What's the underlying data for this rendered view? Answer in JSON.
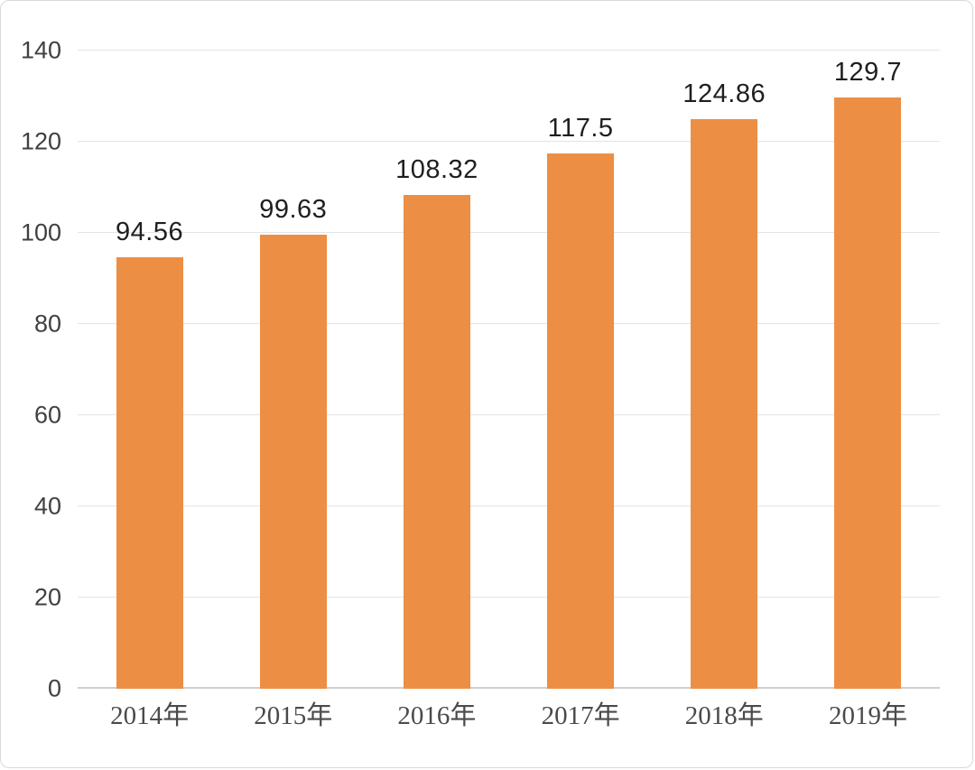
{
  "figure": {
    "background": "#ffffff",
    "border_color": "#d9d9d9"
  },
  "chart_data": {
    "type": "bar",
    "title": "",
    "xlabel": "",
    "ylabel": "",
    "categories": [
      "2014年",
      "2015年",
      "2016年",
      "2017年",
      "2018年",
      "2019年"
    ],
    "values": [
      94.56,
      99.63,
      108.32,
      117.5,
      124.86,
      129.7
    ],
    "value_labels": [
      "94.56",
      "99.63",
      "108.32",
      "117.5",
      "124.86",
      "129.7"
    ],
    "ylim": [
      0,
      140
    ],
    "yticks": [
      0,
      20,
      40,
      60,
      80,
      100,
      120,
      140
    ],
    "grid": "horizontal",
    "legend_position": "none",
    "bar_color": "#ED8E45",
    "value_label_color": "#1f1f1f",
    "tick_label_color": "#404040",
    "gridline_color": "#e4e4e4",
    "baseline_color": "#cfcfcf"
  }
}
